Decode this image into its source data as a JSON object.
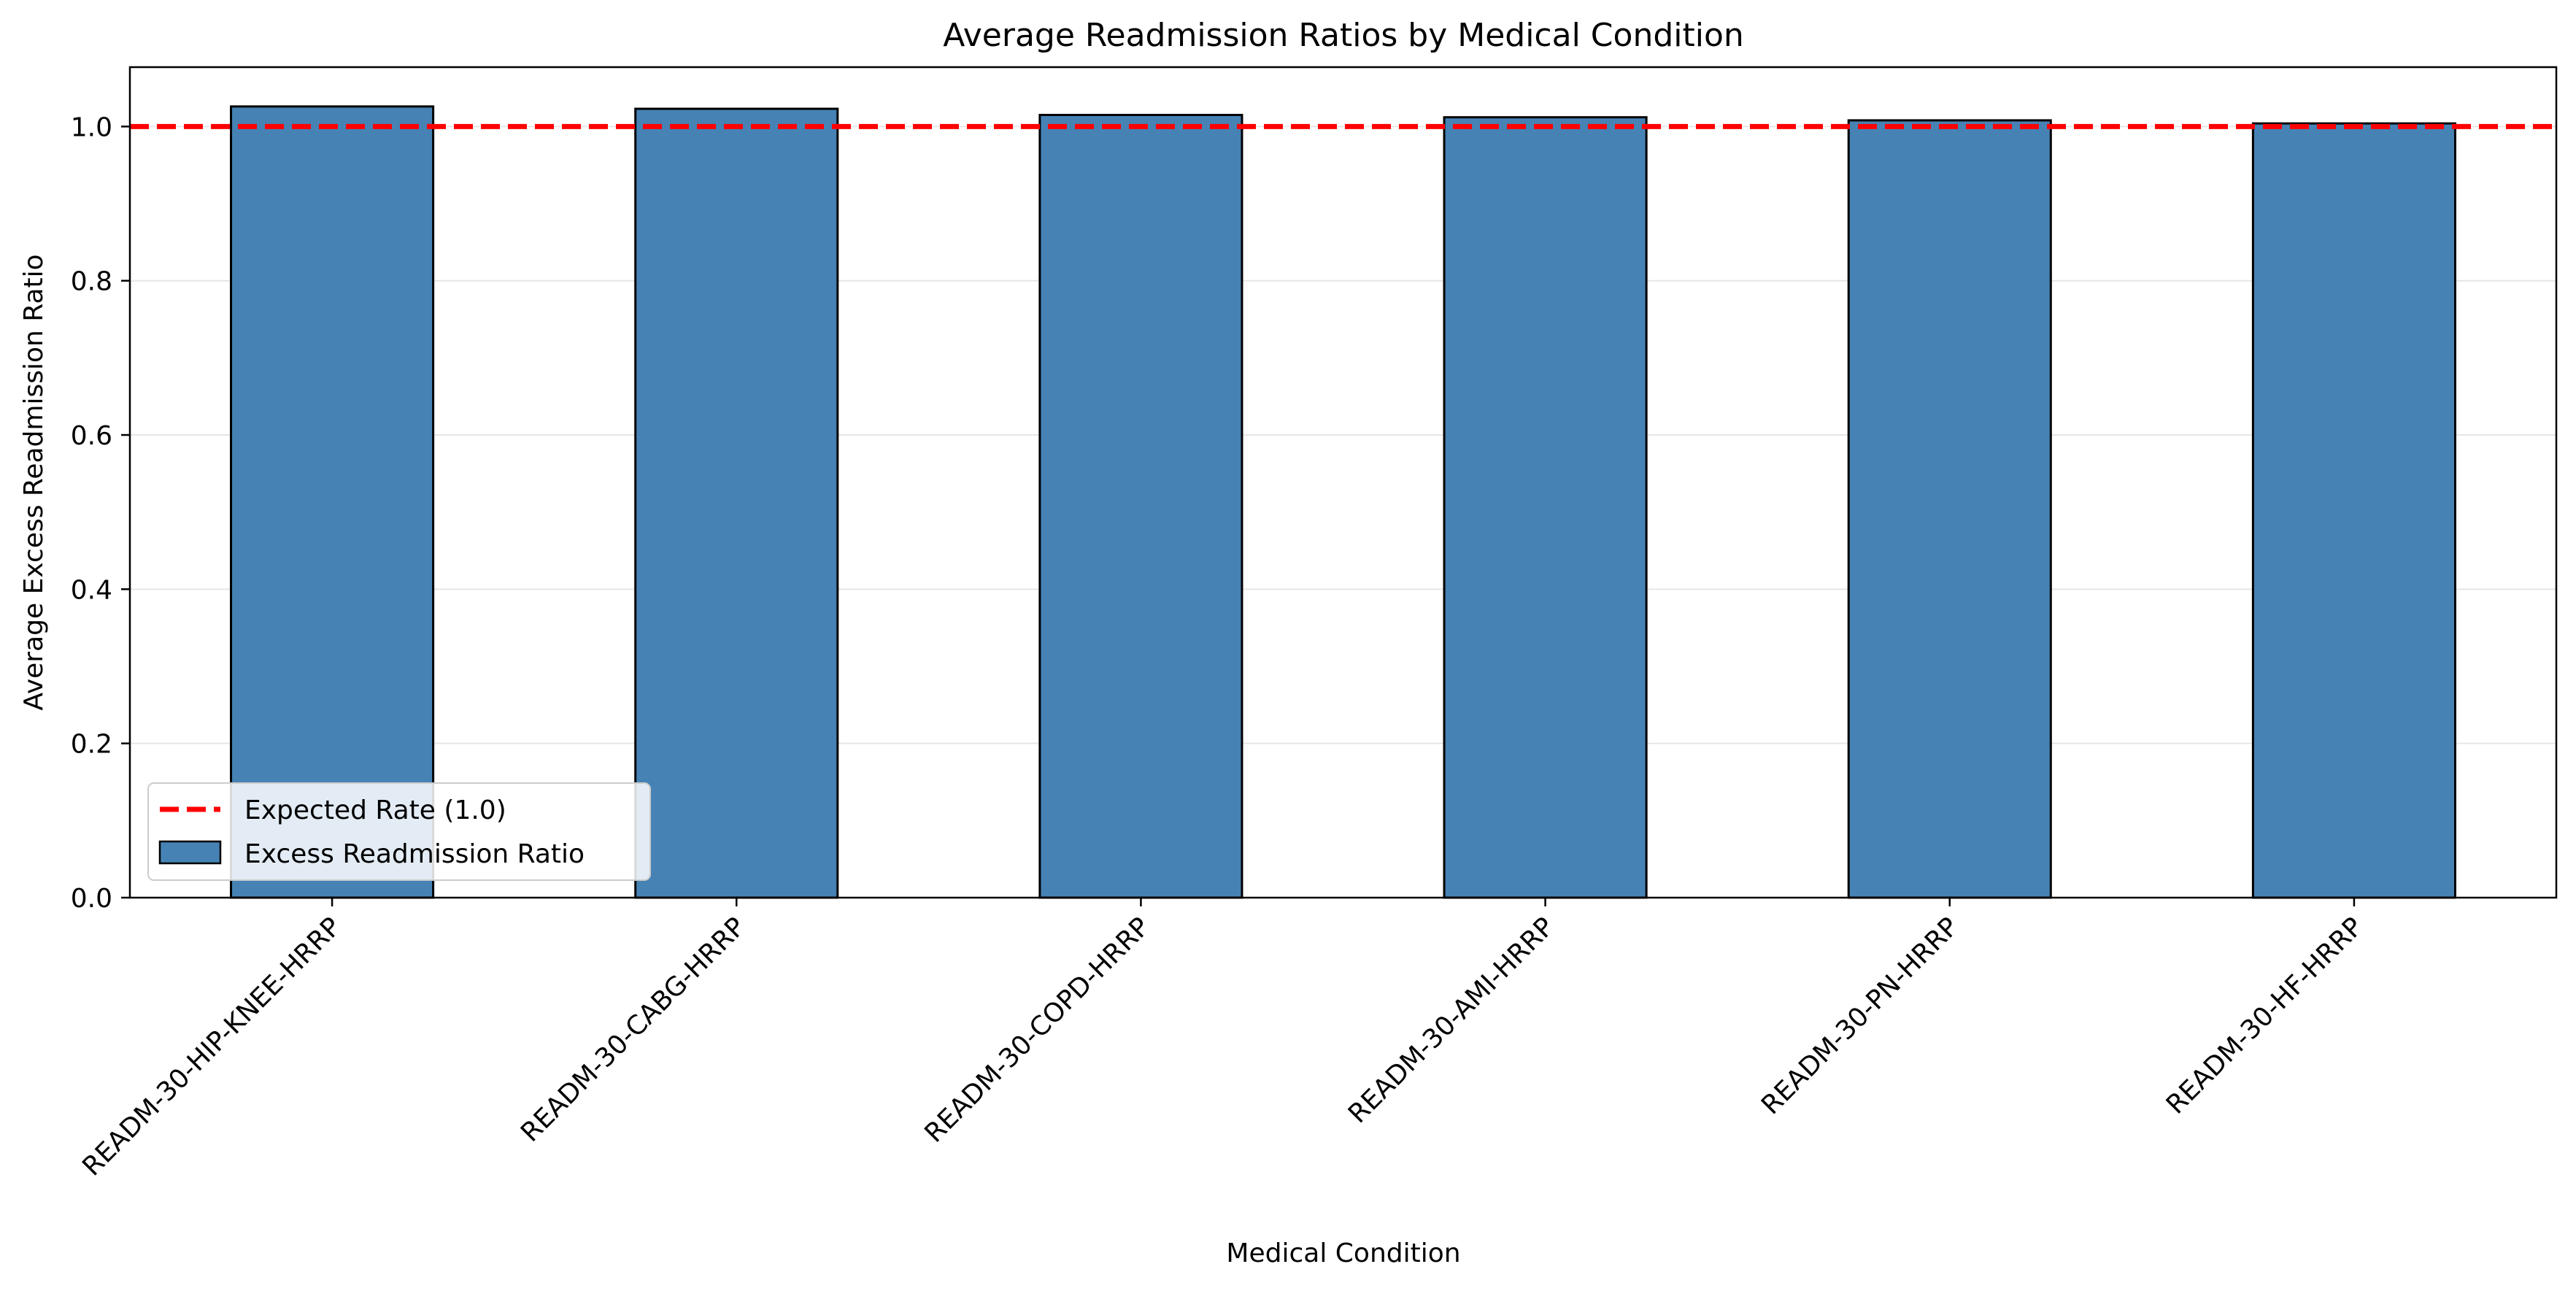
{
  "chart_data": {
    "type": "bar",
    "title": "Average Readmission Ratios by Medical Condition",
    "xlabel": "Medical Condition",
    "ylabel": "Average Excess Readmission Ratio",
    "categories": [
      "READM-30-HIP-KNEE-HRRP",
      "READM-30-CABG-HRRP",
      "READM-30-COPD-HRRP",
      "READM-30-AMI-HRRP",
      "READM-30-PN-HRRP",
      "READM-30-HF-HRRP"
    ],
    "series": [
      {
        "name": "Excess Readmission Ratio",
        "values": [
          1.026,
          1.023,
          1.015,
          1.012,
          1.008,
          1.004
        ]
      }
    ],
    "reference_line": {
      "label": "Expected Rate (1.0)",
      "value": 1.0,
      "color": "#ff0000",
      "style": "dashed"
    },
    "ylim": [
      0.0,
      1.077
    ],
    "yticks": [
      "0.0",
      "0.2",
      "0.4",
      "0.6",
      "0.8",
      "1.0"
    ],
    "ytick_values": [
      0.0,
      0.2,
      0.4,
      0.6,
      0.8,
      1.0
    ],
    "grid": "y",
    "legend_position": "lower-left",
    "colors": {
      "bar": "#4682b4",
      "bar_edge": "#000000",
      "reference": "#ff0000",
      "grid": "#e6e6e6"
    }
  }
}
